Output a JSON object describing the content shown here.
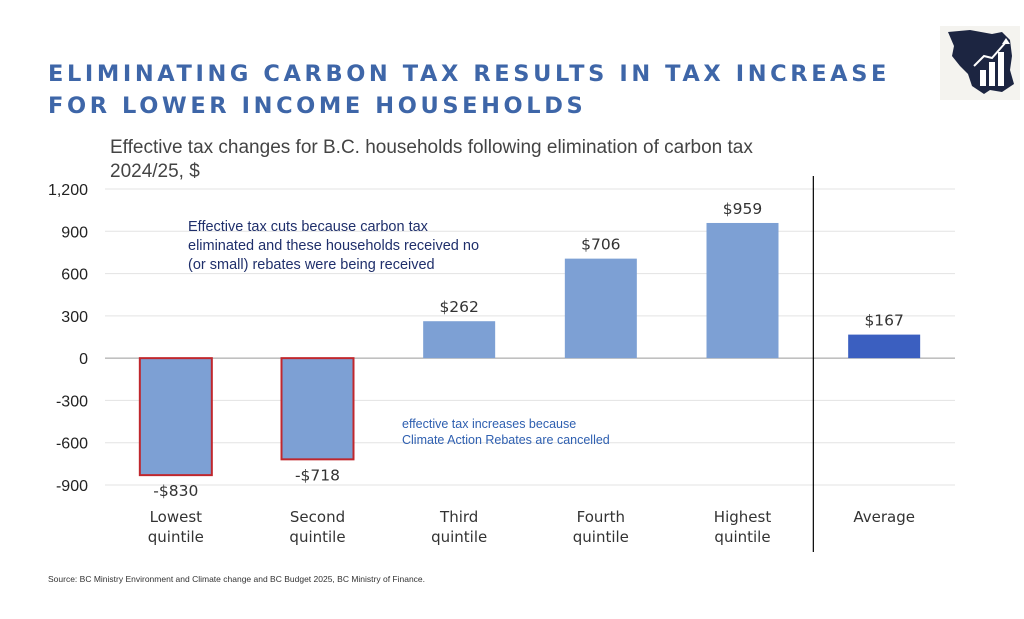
{
  "title": {
    "line1": "ELIMINATING CARBON TAX RESULTS IN TAX INCREASE",
    "line2": "FOR LOWER INCOME HOUSEHOLDS"
  },
  "subtitle": {
    "line1": "Effective tax changes for B.C. households following elimination of carbon tax",
    "line2": "2024/25, $"
  },
  "source": "Source: BC Ministry Environment and Climate change and BC Budget 2025, BC Ministry of Finance.",
  "logo": {
    "icon": "bc-map-bar-chart-icon"
  },
  "colors": {
    "bar": "#7da0d4",
    "average_bar": "#3b5fc0",
    "negative_outline": "#c0272d",
    "title": "#3e66a8",
    "annotation_dark": "#1f2f6b",
    "annotation_blue": "#2e5fb0"
  },
  "chart_data": {
    "type": "bar",
    "categories": [
      [
        "Lowest",
        "quintile"
      ],
      [
        "Second",
        "quintile"
      ],
      [
        "Third",
        "quintile"
      ],
      [
        "Fourth",
        "quintile"
      ],
      [
        "Highest",
        "quintile"
      ],
      [
        "Average"
      ]
    ],
    "values": [
      -830,
      -718,
      262,
      706,
      959,
      167
    ],
    "data_labels": [
      "-$830",
      "-$718",
      "$262",
      "$706",
      "$959",
      "$167"
    ],
    "ylim": [
      -900,
      1200
    ],
    "yticks": [
      1200,
      900,
      600,
      300,
      0,
      -300,
      -600,
      -900
    ],
    "ytick_labels": [
      "1,200",
      "900",
      "600",
      "300",
      "0",
      "-300",
      "-600",
      "-900"
    ],
    "grid": true,
    "separator_before_category": 5,
    "annotations": [
      {
        "lines": [
          "Effective tax cuts because carbon tax",
          "eliminated and these households received no",
          "(or small) rebates were being received"
        ]
      },
      {
        "lines": [
          "effective tax increases because",
          "Climate Action Rebates are cancelled"
        ]
      }
    ]
  }
}
